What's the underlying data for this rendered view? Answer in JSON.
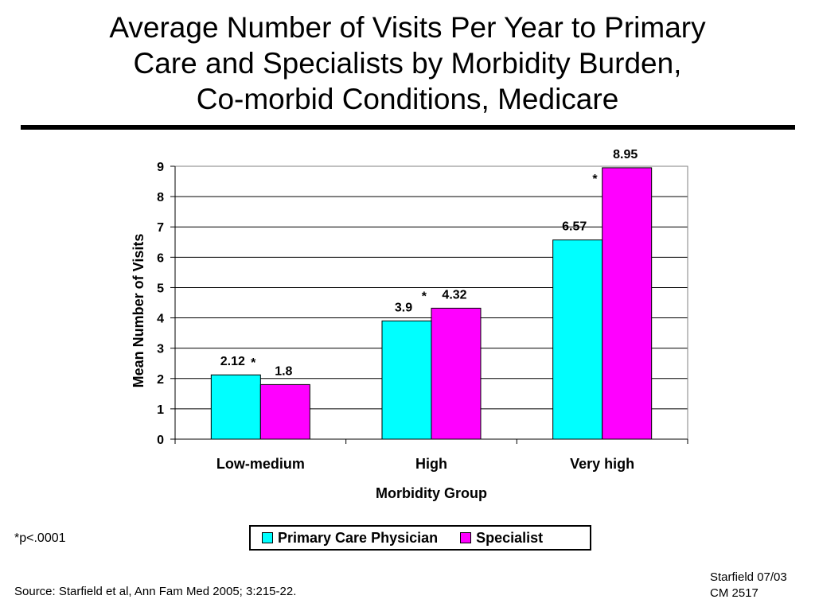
{
  "title_lines": [
    "Average Number of Visits Per Year to Primary",
    "Care and Specialists by Morbidity Burden,",
    "Co-morbid Conditions, Medicare"
  ],
  "footnote": "*p<.0001",
  "source": "Source: Starfield et al, Ann Fam Med 2005; 3:215-22.",
  "credit": [
    "Starfield 07/03",
    "CM 2517"
  ],
  "colors": {
    "primary": "#00ffff",
    "specialist": "#ff00ff"
  },
  "chart_data": {
    "type": "bar",
    "categories": [
      "Low-medium",
      "High",
      "Very high"
    ],
    "series": [
      {
        "name": "Primary Care Physician",
        "values": [
          2.12,
          3.9,
          6.57
        ]
      },
      {
        "name": "Specialist",
        "values": [
          1.8,
          4.32,
          8.95
        ]
      }
    ],
    "data_labels": {
      "primary": [
        "2.12",
        "3.9",
        "6.57"
      ],
      "specialist": [
        "1.8",
        "4.32",
        "8.95"
      ]
    },
    "significance_marker": "*",
    "xlabel": "Morbidity Group",
    "ylabel": "Mean Number of Visits",
    "ylim": [
      0,
      9
    ],
    "yticks": [
      "0",
      "1",
      "2",
      "3",
      "4",
      "5",
      "6",
      "7",
      "8",
      "9"
    ],
    "grid": true,
    "legend": "bottom"
  }
}
